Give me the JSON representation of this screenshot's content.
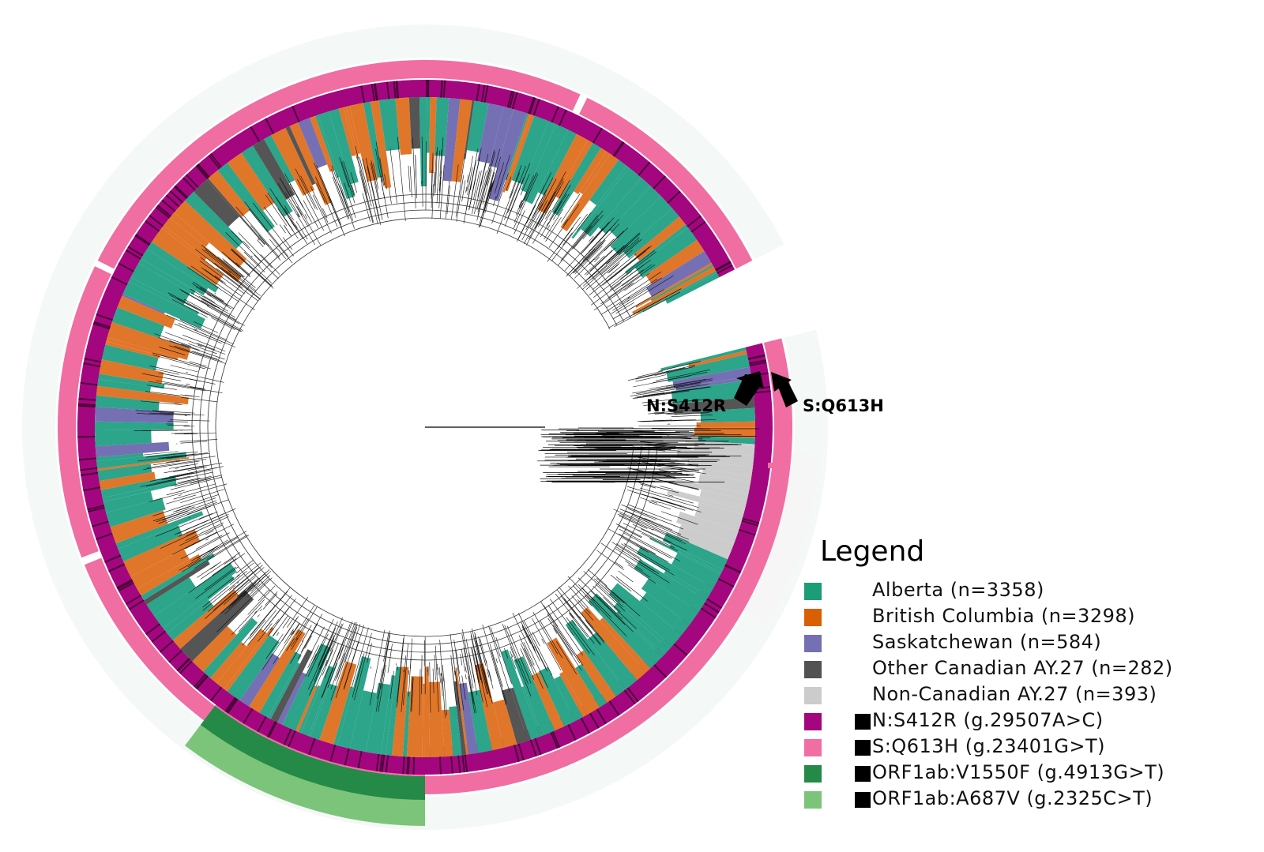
{
  "colors": {
    "alberta": "#2ca58a",
    "british_columbia": "#e0762a",
    "saskatchewan": "#7570b3",
    "other_canadian": "#555555",
    "non_canadian": "#cccccc",
    "n_s412r": "#a3067f",
    "s_q613h": "#f06ea2",
    "orf1ab_v1550f": "#258a47",
    "orf1ab_a687v": "#7cc47a"
  },
  "annotations": {
    "n_s412r_label": "N:S412R",
    "s_q613h_label": "S:Q613H"
  },
  "legend": {
    "title": "Legend",
    "regions": [
      {
        "label": "Alberta (n=3358)",
        "color": "#1b9e77"
      },
      {
        "label": "British Columbia (n=3298)",
        "color": "#d95f02"
      },
      {
        "label": "Saskatchewan (n=584)",
        "color": "#7570b3"
      },
      {
        "label": "Other Canadian AY.27 (n=282)",
        "color": "#525252"
      },
      {
        "label": "Non-Canadian AY.27 (n=393)",
        "color": "#cccccc"
      }
    ],
    "mutations": [
      {
        "label": "N:S412R (g.29507A>C)",
        "color": "#a3067f"
      },
      {
        "label": "S:Q613H (g.23401G>T)",
        "color": "#f06ea2"
      },
      {
        "label": "ORF1ab:V1550F (g.4913G>T)",
        "color": "#258a47"
      },
      {
        "label": "ORF1ab:A687V (g.2325C>T)",
        "color": "#7cc47a"
      }
    ]
  }
}
